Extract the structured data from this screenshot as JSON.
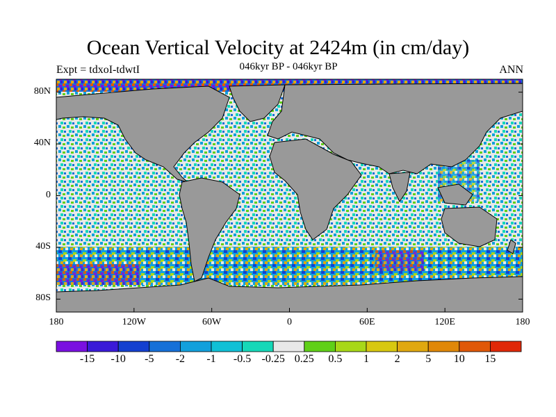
{
  "title": "Ocean Vertical Velocity at 2424m (in cm/day)",
  "subtitle": "046kyr BP - 046kyr BP",
  "left_label": "Expt = tdxoI-tdwtI",
  "right_label": "ANN",
  "lat_labels": [
    "80N",
    "40N",
    "0",
    "40S",
    "80S"
  ],
  "lat_values": [
    80,
    40,
    0,
    -40,
    -80
  ],
  "lon_labels": [
    "180",
    "120W",
    "60W",
    "0",
    "60E",
    "120E",
    "180"
  ],
  "lon_values": [
    -180,
    -120,
    -60,
    0,
    60,
    120,
    180
  ],
  "colorbar": {
    "colors": [
      "#7a10e0",
      "#3a1ad8",
      "#1440d0",
      "#1670d8",
      "#12a0dc",
      "#10c0d6",
      "#16d8b8",
      "#e8e8e8",
      "#60d018",
      "#a8d818",
      "#d8c810",
      "#e0a810",
      "#e08808",
      "#e05808",
      "#e02808"
    ],
    "labels": [
      "-15",
      "-10",
      "-5",
      "-2",
      "-1",
      "-0.5",
      "-0.25",
      "0.25",
      "0.5",
      "1",
      "2",
      "5",
      "10",
      "15"
    ]
  },
  "colors": {
    "land": "#999999",
    "coast": "#000000"
  }
}
